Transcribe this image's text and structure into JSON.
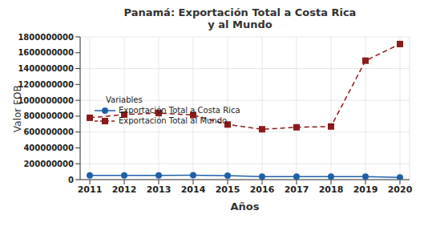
{
  "chart_data": {
    "type": "line",
    "title": "Panamá: Exportación Total a Costa Rica y al Mundo",
    "x_label": "Años",
    "y_label": "Valor FOB",
    "legend_title": "Variables",
    "legend": "upper left",
    "grid": true,
    "categories": [
      "2011",
      "2012",
      "2013",
      "2014",
      "2015",
      "2016",
      "2017",
      "2018",
      "2019",
      "2020"
    ],
    "series": [
      {
        "name": "Exportación Total a Costa Rica",
        "color": "#1f5fa8",
        "marker": "circle",
        "line_style": "solid",
        "values": [
          52000000,
          52000000,
          52000000,
          55000000,
          50000000,
          38000000,
          38000000,
          38000000,
          38000000,
          28000000
        ]
      },
      {
        "name": "Exportación Total al Mundo",
        "color": "#8b1a1a",
        "marker": "square",
        "line_style": "dashed",
        "values": [
          780000000,
          820000000,
          840000000,
          815000000,
          695000000,
          635000000,
          660000000,
          670000000,
          1500000000,
          1710000000
        ]
      }
    ],
    "ylim": [
      0,
      1800000000
    ],
    "yticks": [
      0,
      200000000,
      400000000,
      600000000,
      800000000,
      1000000000,
      1200000000,
      1400000000,
      1600000000,
      1800000000
    ]
  }
}
